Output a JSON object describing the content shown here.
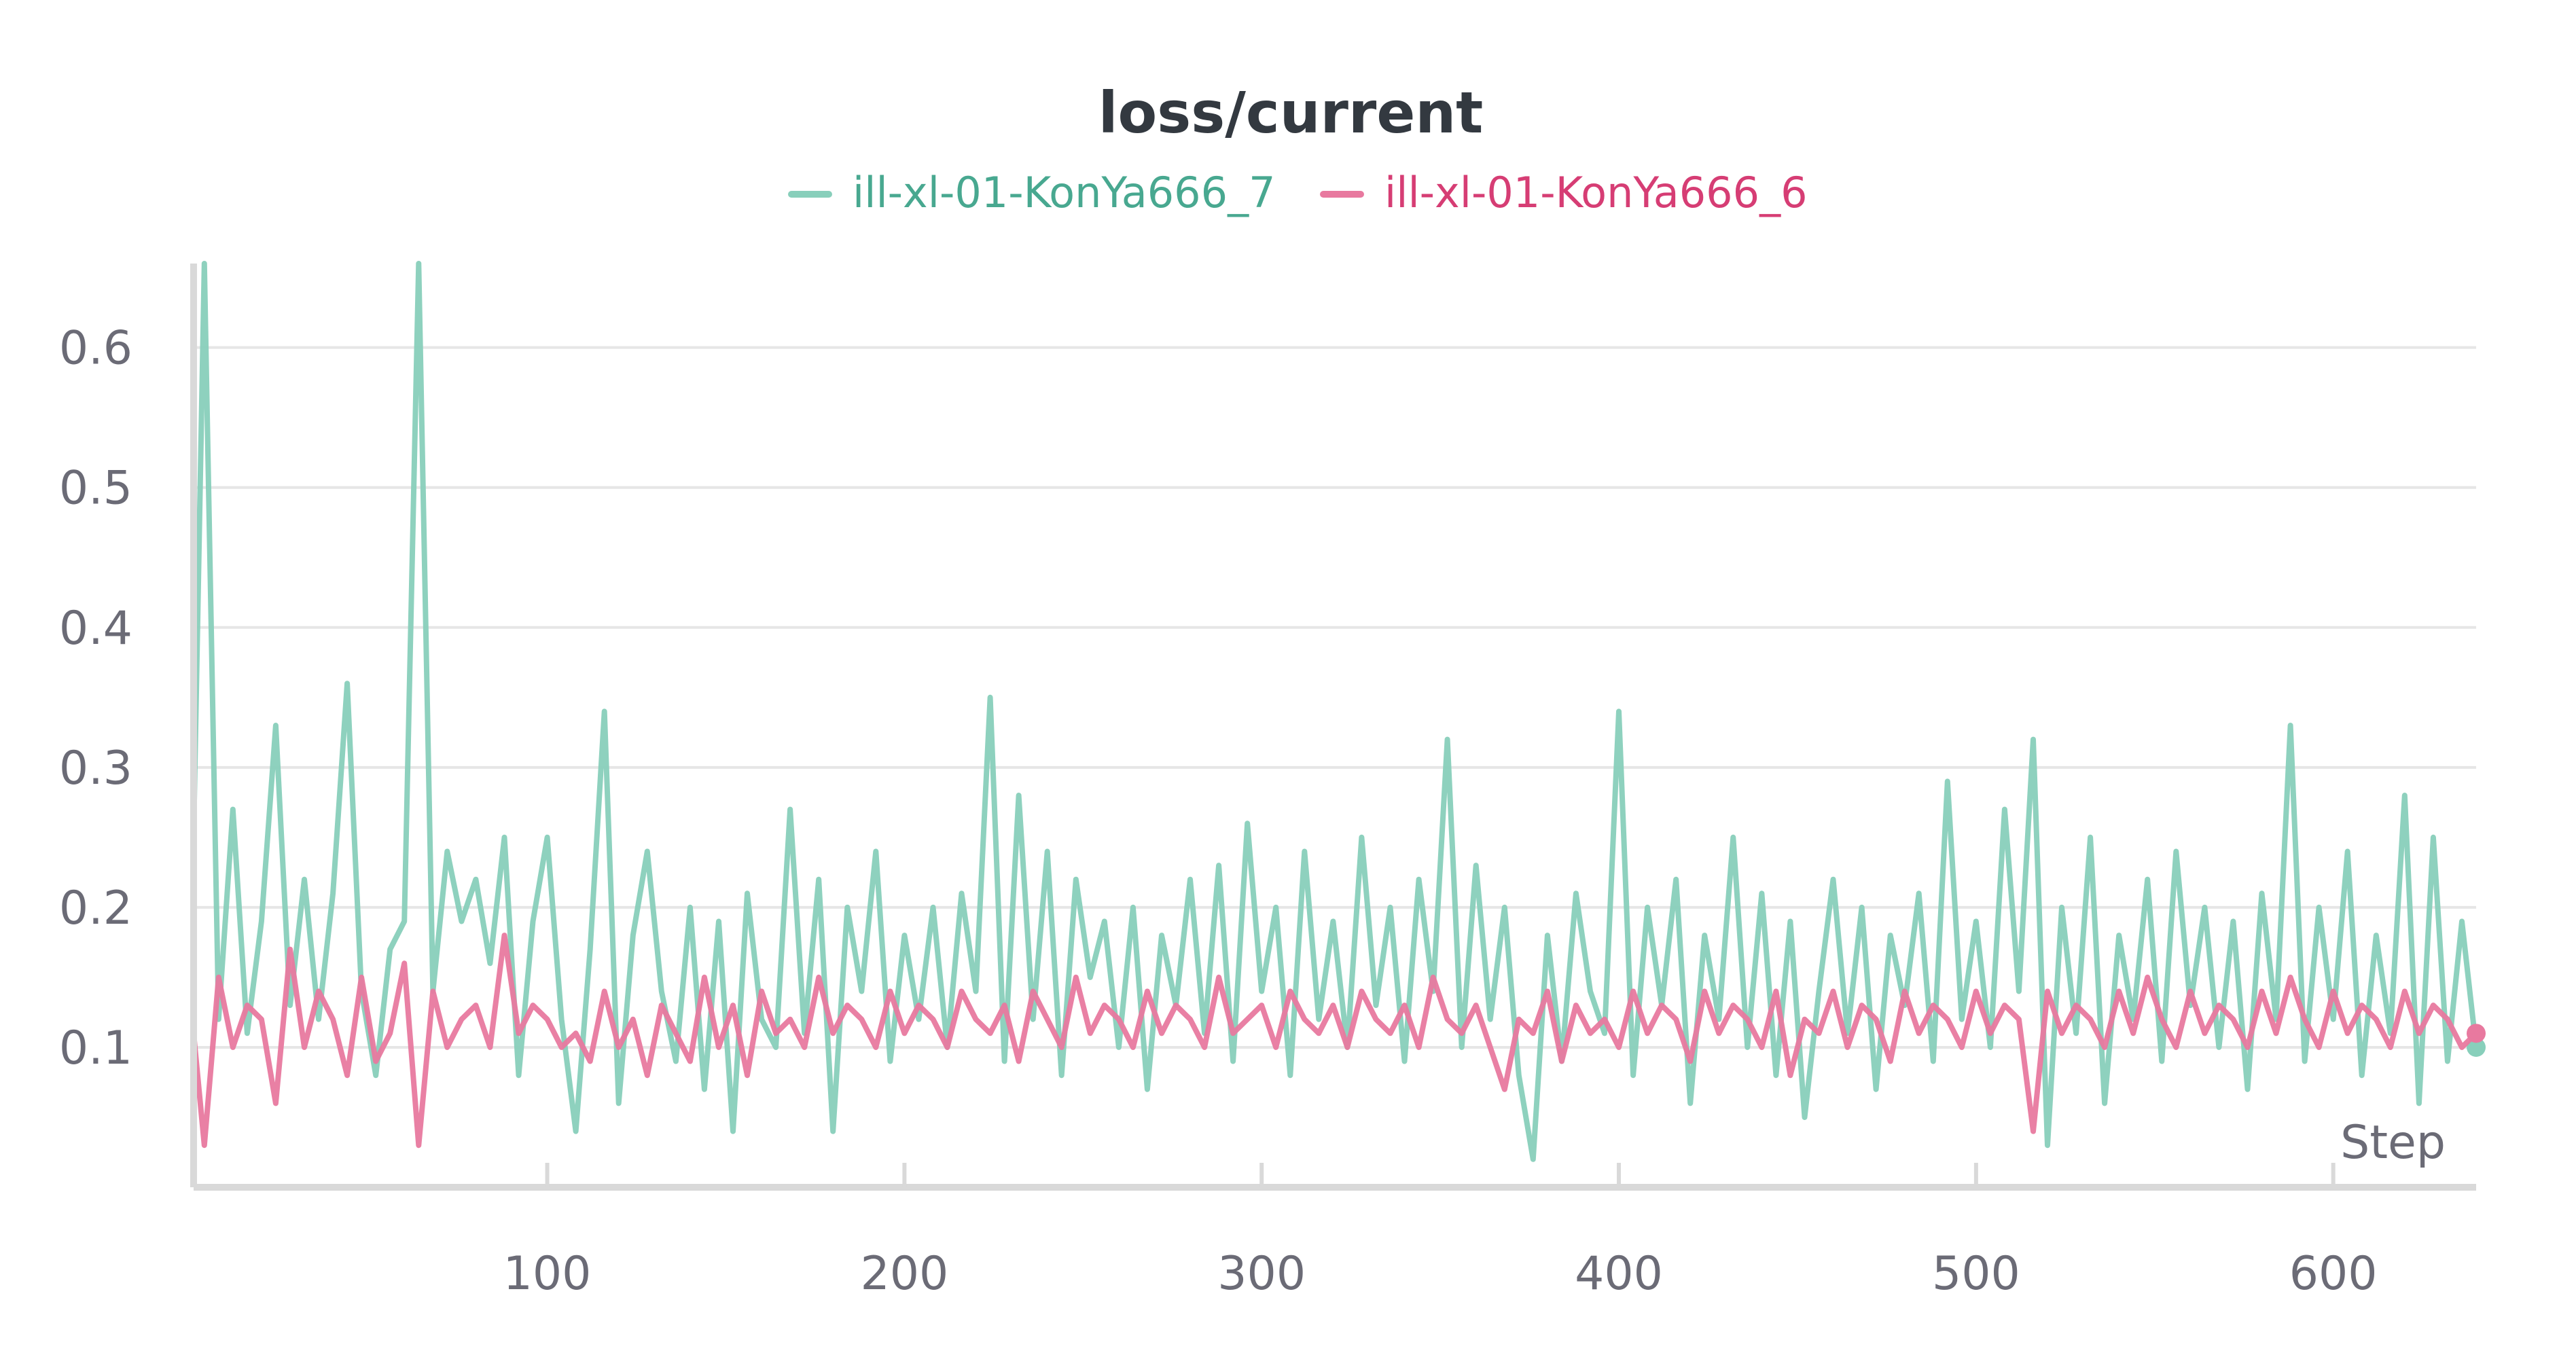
{
  "chart_data": {
    "type": "line",
    "title": "loss/current",
    "xlabel": "Step",
    "ylabel": "",
    "xlim": [
      1,
      640
    ],
    "ylim": [
      0.0,
      0.66
    ],
    "x_ticks": [
      100,
      200,
      300,
      400,
      500,
      600
    ],
    "y_ticks": [
      0.1,
      0.2,
      0.3,
      0.4,
      0.5,
      0.6
    ],
    "x_tick_labels": [
      "100",
      "200",
      "300",
      "400",
      "500",
      "600"
    ],
    "y_tick_labels": [
      "0.1",
      "0.2",
      "0.3",
      "0.4",
      "0.5",
      "0.6"
    ],
    "grid": true,
    "legend_position": "top-center",
    "series": [
      {
        "name": "ill-xl-01-KonYa666_7",
        "color": "#88cfbb",
        "x": [
          1,
          4,
          8,
          12,
          16,
          20,
          24,
          28,
          32,
          36,
          40,
          44,
          48,
          52,
          56,
          60,
          64,
          68,
          72,
          76,
          80,
          84,
          88,
          92,
          96,
          100,
          104,
          108,
          112,
          116,
          120,
          124,
          128,
          132,
          136,
          140,
          144,
          148,
          152,
          156,
          160,
          164,
          168,
          172,
          176,
          180,
          184,
          188,
          192,
          196,
          200,
          204,
          208,
          212,
          216,
          220,
          224,
          228,
          232,
          236,
          240,
          244,
          248,
          252,
          256,
          260,
          264,
          268,
          272,
          276,
          280,
          284,
          288,
          292,
          296,
          300,
          304,
          308,
          312,
          316,
          320,
          324,
          328,
          332,
          336,
          340,
          344,
          348,
          352,
          356,
          360,
          364,
          368,
          372,
          376,
          380,
          384,
          388,
          392,
          396,
          400,
          404,
          408,
          412,
          416,
          420,
          424,
          428,
          432,
          436,
          440,
          444,
          448,
          452,
          456,
          460,
          464,
          468,
          472,
          476,
          480,
          484,
          488,
          492,
          496,
          500,
          504,
          508,
          512,
          516,
          520,
          524,
          528,
          532,
          536,
          540,
          544,
          548,
          552,
          556,
          560,
          564,
          568,
          572,
          576,
          580,
          584,
          588,
          592,
          596,
          600,
          604,
          608,
          612,
          616,
          620,
          624,
          628,
          632,
          636,
          640
        ],
        "values": [
          0.25,
          0.66,
          0.12,
          0.27,
          0.11,
          0.19,
          0.33,
          0.13,
          0.22,
          0.12,
          0.21,
          0.36,
          0.14,
          0.08,
          0.17,
          0.19,
          0.66,
          0.14,
          0.24,
          0.19,
          0.22,
          0.16,
          0.25,
          0.08,
          0.19,
          0.25,
          0.12,
          0.04,
          0.17,
          0.34,
          0.06,
          0.18,
          0.24,
          0.14,
          0.09,
          0.2,
          0.07,
          0.19,
          0.04,
          0.21,
          0.12,
          0.1,
          0.27,
          0.11,
          0.22,
          0.04,
          0.2,
          0.14,
          0.24,
          0.09,
          0.18,
          0.12,
          0.2,
          0.1,
          0.21,
          0.14,
          0.35,
          0.09,
          0.28,
          0.12,
          0.24,
          0.08,
          0.22,
          0.15,
          0.19,
          0.1,
          0.2,
          0.07,
          0.18,
          0.13,
          0.22,
          0.11,
          0.23,
          0.09,
          0.26,
          0.14,
          0.2,
          0.08,
          0.24,
          0.12,
          0.19,
          0.1,
          0.25,
          0.13,
          0.2,
          0.09,
          0.22,
          0.14,
          0.32,
          0.1,
          0.23,
          0.12,
          0.2,
          0.08,
          0.02,
          0.18,
          0.09,
          0.21,
          0.14,
          0.11,
          0.34,
          0.08,
          0.2,
          0.13,
          0.22,
          0.06,
          0.18,
          0.12,
          0.25,
          0.1,
          0.21,
          0.08,
          0.19,
          0.05,
          0.14,
          0.22,
          0.11,
          0.2,
          0.07,
          0.18,
          0.13,
          0.21,
          0.09,
          0.29,
          0.12,
          0.19,
          0.1,
          0.27,
          0.14,
          0.32,
          0.03,
          0.2,
          0.11,
          0.25,
          0.06,
          0.18,
          0.12,
          0.22,
          0.09,
          0.24,
          0.13,
          0.2,
          0.1,
          0.19,
          0.07,
          0.21,
          0.12,
          0.33,
          0.09,
          0.2,
          0.12,
          0.24,
          0.08,
          0.18,
          0.11,
          0.28,
          0.06,
          0.25,
          0.09,
          0.19,
          0.1
        ]
      },
      {
        "name": "ill-xl-01-KonYa666_6",
        "color": "#e8799f",
        "x": [
          1,
          4,
          8,
          12,
          16,
          20,
          24,
          28,
          32,
          36,
          40,
          44,
          48,
          52,
          56,
          60,
          64,
          68,
          72,
          76,
          80,
          84,
          88,
          92,
          96,
          100,
          104,
          108,
          112,
          116,
          120,
          124,
          128,
          132,
          136,
          140,
          144,
          148,
          152,
          156,
          160,
          164,
          168,
          172,
          176,
          180,
          184,
          188,
          192,
          196,
          200,
          204,
          208,
          212,
          216,
          220,
          224,
          228,
          232,
          236,
          240,
          244,
          248,
          252,
          256,
          260,
          264,
          268,
          272,
          276,
          280,
          284,
          288,
          292,
          296,
          300,
          304,
          308,
          312,
          316,
          320,
          324,
          328,
          332,
          336,
          340,
          344,
          348,
          352,
          356,
          360,
          364,
          368,
          372,
          376,
          380,
          384,
          388,
          392,
          396,
          400,
          404,
          408,
          412,
          416,
          420,
          424,
          428,
          432,
          436,
          440,
          444,
          448,
          452,
          456,
          460,
          464,
          468,
          472,
          476,
          480,
          484,
          488,
          492,
          496,
          500,
          504,
          508,
          512,
          516,
          520,
          524,
          528,
          532,
          536,
          540,
          544,
          548,
          552,
          556,
          560,
          564,
          568,
          572,
          576,
          580,
          584,
          588,
          592,
          596,
          600,
          604,
          608,
          612,
          616,
          620,
          624,
          628,
          632,
          636,
          640
        ],
        "values": [
          0.11,
          0.03,
          0.15,
          0.1,
          0.13,
          0.12,
          0.06,
          0.17,
          0.1,
          0.14,
          0.12,
          0.08,
          0.15,
          0.09,
          0.11,
          0.16,
          0.03,
          0.14,
          0.1,
          0.12,
          0.13,
          0.1,
          0.18,
          0.11,
          0.13,
          0.12,
          0.1,
          0.11,
          0.09,
          0.14,
          0.1,
          0.12,
          0.08,
          0.13,
          0.11,
          0.09,
          0.15,
          0.1,
          0.13,
          0.08,
          0.14,
          0.11,
          0.12,
          0.1,
          0.15,
          0.11,
          0.13,
          0.12,
          0.1,
          0.14,
          0.11,
          0.13,
          0.12,
          0.1,
          0.14,
          0.12,
          0.11,
          0.13,
          0.09,
          0.14,
          0.12,
          0.1,
          0.15,
          0.11,
          0.13,
          0.12,
          0.1,
          0.14,
          0.11,
          0.13,
          0.12,
          0.1,
          0.15,
          0.11,
          0.12,
          0.13,
          0.1,
          0.14,
          0.12,
          0.11,
          0.13,
          0.1,
          0.14,
          0.12,
          0.11,
          0.13,
          0.1,
          0.15,
          0.12,
          0.11,
          0.13,
          0.1,
          0.07,
          0.12,
          0.11,
          0.14,
          0.09,
          0.13,
          0.11,
          0.12,
          0.1,
          0.14,
          0.11,
          0.13,
          0.12,
          0.09,
          0.14,
          0.11,
          0.13,
          0.12,
          0.1,
          0.14,
          0.08,
          0.12,
          0.11,
          0.14,
          0.1,
          0.13,
          0.12,
          0.09,
          0.14,
          0.11,
          0.13,
          0.12,
          0.1,
          0.14,
          0.11,
          0.13,
          0.12,
          0.04,
          0.14,
          0.11,
          0.13,
          0.12,
          0.1,
          0.14,
          0.11,
          0.15,
          0.12,
          0.1,
          0.14,
          0.11,
          0.13,
          0.12,
          0.1,
          0.14,
          0.11,
          0.15,
          0.12,
          0.1,
          0.14,
          0.11,
          0.13,
          0.12,
          0.1,
          0.14,
          0.11,
          0.13,
          0.12,
          0.1,
          0.11
        ]
      }
    ]
  }
}
